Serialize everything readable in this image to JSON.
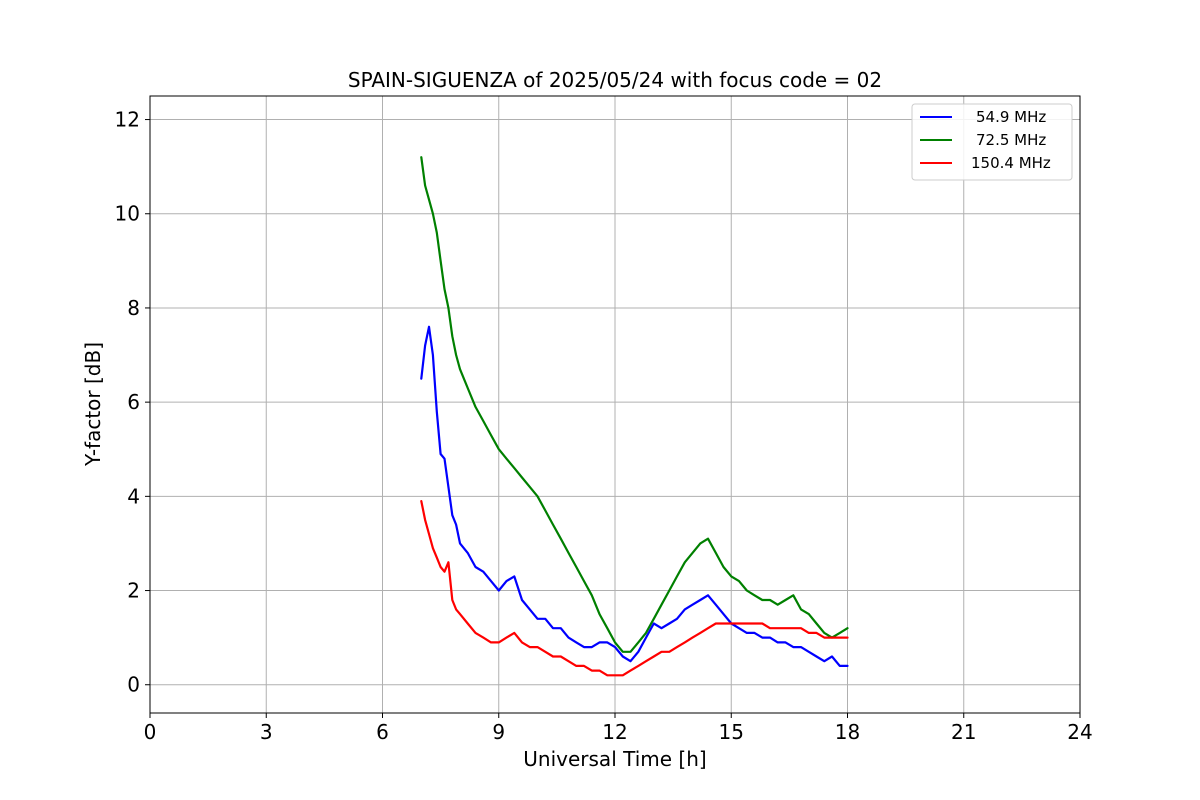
{
  "chart_data": {
    "type": "line",
    "title": "SPAIN-SIGUENZA of 2025/05/24 with focus code = 02",
    "xlabel": "Universal Time [h]",
    "ylabel": "Y-factor [dB]",
    "xlim": [
      0,
      24
    ],
    "ylim": [
      -0.6,
      12.5
    ],
    "xticks": [
      0,
      3,
      6,
      9,
      12,
      15,
      18,
      21,
      24
    ],
    "yticks": [
      0,
      2,
      4,
      6,
      8,
      10,
      12
    ],
    "grid": true,
    "legend_position": "top-right",
    "series": [
      {
        "name": "54.9 MHz",
        "color": "#0000ff",
        "x": [
          7.0,
          7.1,
          7.2,
          7.3,
          7.4,
          7.5,
          7.6,
          7.7,
          7.8,
          7.9,
          8.0,
          8.2,
          8.4,
          8.6,
          8.8,
          9.0,
          9.2,
          9.4,
          9.6,
          9.8,
          10.0,
          10.2,
          10.4,
          10.6,
          10.8,
          11.0,
          11.2,
          11.4,
          11.6,
          11.8,
          12.0,
          12.2,
          12.4,
          12.6,
          12.8,
          13.0,
          13.2,
          13.4,
          13.6,
          13.8,
          14.0,
          14.2,
          14.4,
          14.6,
          14.8,
          15.0,
          15.2,
          15.4,
          15.6,
          15.8,
          16.0,
          16.2,
          16.4,
          16.6,
          16.8,
          17.0,
          17.2,
          17.4,
          17.6,
          17.8,
          18.0
        ],
        "y": [
          6.5,
          7.2,
          7.6,
          7.0,
          5.8,
          4.9,
          4.8,
          4.2,
          3.6,
          3.4,
          3.0,
          2.8,
          2.5,
          2.4,
          2.2,
          2.0,
          2.2,
          2.3,
          1.8,
          1.6,
          1.4,
          1.4,
          1.2,
          1.2,
          1.0,
          0.9,
          0.8,
          0.8,
          0.9,
          0.9,
          0.8,
          0.6,
          0.5,
          0.7,
          1.0,
          1.3,
          1.2,
          1.3,
          1.4,
          1.6,
          1.7,
          1.8,
          1.9,
          1.7,
          1.5,
          1.3,
          1.2,
          1.1,
          1.1,
          1.0,
          1.0,
          0.9,
          0.9,
          0.8,
          0.8,
          0.7,
          0.6,
          0.5,
          0.6,
          0.4,
          0.4
        ]
      },
      {
        "name": "72.5 MHz",
        "color": "#008000",
        "x": [
          7.0,
          7.1,
          7.2,
          7.3,
          7.4,
          7.5,
          7.6,
          7.7,
          7.8,
          7.9,
          8.0,
          8.2,
          8.4,
          8.6,
          8.8,
          9.0,
          9.2,
          9.4,
          9.6,
          9.8,
          10.0,
          10.2,
          10.4,
          10.6,
          10.8,
          11.0,
          11.2,
          11.4,
          11.6,
          11.8,
          12.0,
          12.2,
          12.4,
          12.6,
          12.8,
          13.0,
          13.2,
          13.4,
          13.6,
          13.8,
          14.0,
          14.2,
          14.4,
          14.6,
          14.8,
          15.0,
          15.2,
          15.4,
          15.6,
          15.8,
          16.0,
          16.2,
          16.4,
          16.6,
          16.8,
          17.0,
          17.2,
          17.4,
          17.6,
          17.8,
          18.0
        ],
        "y": [
          11.2,
          10.6,
          10.3,
          10.0,
          9.6,
          9.0,
          8.4,
          8.0,
          7.4,
          7.0,
          6.7,
          6.3,
          5.9,
          5.6,
          5.3,
          5.0,
          4.8,
          4.6,
          4.4,
          4.2,
          4.0,
          3.7,
          3.4,
          3.1,
          2.8,
          2.5,
          2.2,
          1.9,
          1.5,
          1.2,
          0.9,
          0.7,
          0.7,
          0.9,
          1.1,
          1.4,
          1.7,
          2.0,
          2.3,
          2.6,
          2.8,
          3.0,
          3.1,
          2.8,
          2.5,
          2.3,
          2.2,
          2.0,
          1.9,
          1.8,
          1.8,
          1.7,
          1.8,
          1.9,
          1.6,
          1.5,
          1.3,
          1.1,
          1.0,
          1.1,
          1.2
        ]
      },
      {
        "name": "150.4 MHz",
        "color": "#ff0000",
        "x": [
          7.0,
          7.1,
          7.2,
          7.3,
          7.4,
          7.5,
          7.6,
          7.7,
          7.8,
          7.9,
          8.0,
          8.2,
          8.4,
          8.6,
          8.8,
          9.0,
          9.2,
          9.4,
          9.6,
          9.8,
          10.0,
          10.2,
          10.4,
          10.6,
          10.8,
          11.0,
          11.2,
          11.4,
          11.6,
          11.8,
          12.0,
          12.2,
          12.4,
          12.6,
          12.8,
          13.0,
          13.2,
          13.4,
          13.6,
          13.8,
          14.0,
          14.2,
          14.4,
          14.6,
          14.8,
          15.0,
          15.2,
          15.4,
          15.6,
          15.8,
          16.0,
          16.2,
          16.4,
          16.6,
          16.8,
          17.0,
          17.2,
          17.4,
          17.6,
          17.8,
          18.0
        ],
        "y": [
          3.9,
          3.5,
          3.2,
          2.9,
          2.7,
          2.5,
          2.4,
          2.6,
          1.8,
          1.6,
          1.5,
          1.3,
          1.1,
          1.0,
          0.9,
          0.9,
          1.0,
          1.1,
          0.9,
          0.8,
          0.8,
          0.7,
          0.6,
          0.6,
          0.5,
          0.4,
          0.4,
          0.3,
          0.3,
          0.2,
          0.2,
          0.2,
          0.3,
          0.4,
          0.5,
          0.6,
          0.7,
          0.7,
          0.8,
          0.9,
          1.0,
          1.1,
          1.2,
          1.3,
          1.3,
          1.3,
          1.3,
          1.3,
          1.3,
          1.3,
          1.2,
          1.2,
          1.2,
          1.2,
          1.2,
          1.1,
          1.1,
          1.0,
          1.0,
          1.0,
          1.0
        ]
      }
    ]
  }
}
